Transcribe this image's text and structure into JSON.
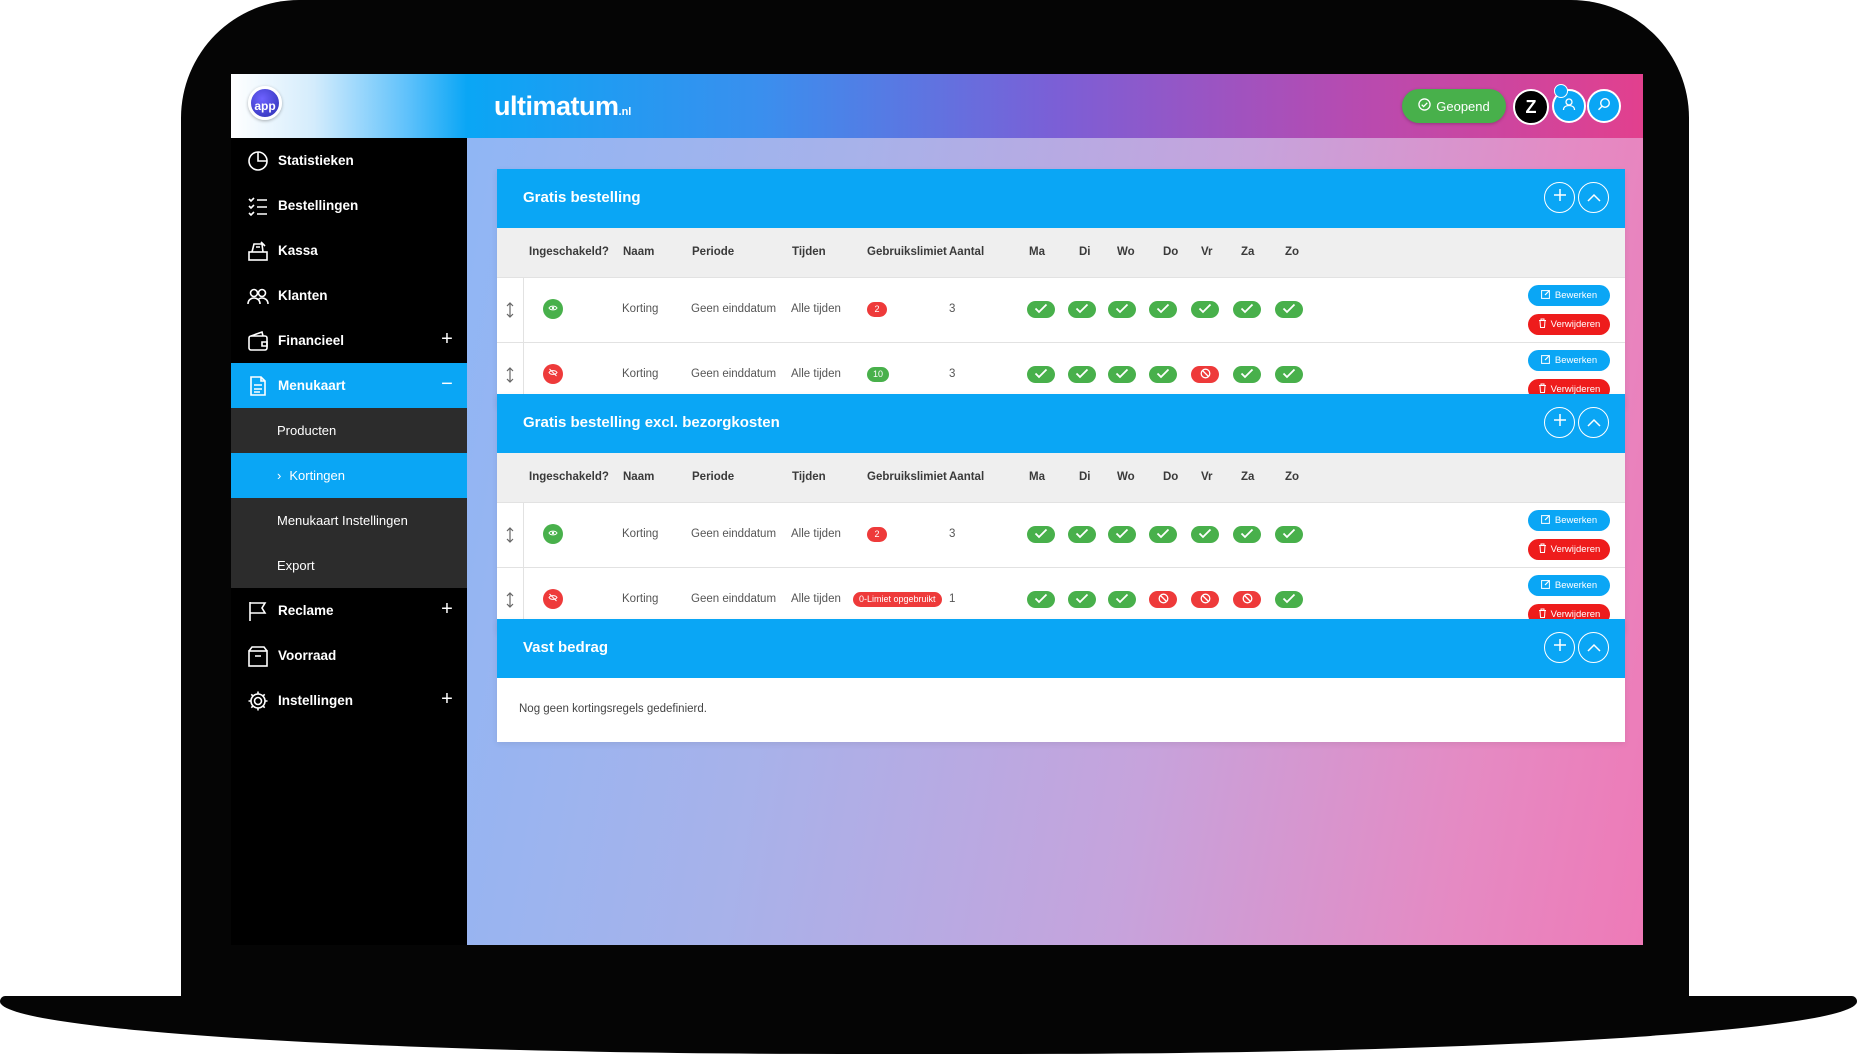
{
  "app": {
    "logo_text": "app",
    "brand": "ultimatum",
    "brand_suffix": ".nl",
    "status_button": "Geopend",
    "user_initial": "Z"
  },
  "sidebar": {
    "items": [
      {
        "label": "Statistieken",
        "icon": "pie-chart-icon"
      },
      {
        "label": "Bestellingen",
        "icon": "checklist-icon"
      },
      {
        "label": "Kassa",
        "icon": "cash-register-icon"
      },
      {
        "label": "Klanten",
        "icon": "users-icon"
      },
      {
        "label": "Financieel",
        "icon": "wallet-icon",
        "expandable": true
      },
      {
        "label": "Menukaart",
        "icon": "document-icon",
        "expanded": true,
        "active": true
      },
      {
        "label": "Reclame",
        "icon": "flag-icon",
        "expandable": true
      },
      {
        "label": "Voorraad",
        "icon": "box-icon"
      },
      {
        "label": "Instellingen",
        "icon": "gear-icon",
        "expandable": true
      }
    ],
    "sub_items": [
      {
        "label": "Producten"
      },
      {
        "label": "Kortingen",
        "active": true
      },
      {
        "label": "Menukaart Instellingen"
      },
      {
        "label": "Export"
      }
    ]
  },
  "columns": {
    "enabled": "Ingeschakeld?",
    "name": "Naam",
    "period": "Periode",
    "times": "Tijden",
    "limit": "Gebruikslimiet",
    "count": "Aantal",
    "days": [
      "Ma",
      "Di",
      "Wo",
      "Do",
      "Vr",
      "Za",
      "Zo"
    ]
  },
  "actions": {
    "edit": "Bewerken",
    "delete": "Verwijderen"
  },
  "sections": [
    {
      "title": "Gratis bestelling",
      "rows": [
        {
          "enabled": true,
          "name": "Korting",
          "period": "Geen einddatum",
          "times": "Alle tijden",
          "limit": "2",
          "limit_color": "red",
          "count": "3",
          "days": [
            true,
            true,
            true,
            true,
            true,
            true,
            true
          ]
        },
        {
          "enabled": false,
          "name": "Korting",
          "period": "Geen einddatum",
          "times": "Alle tijden",
          "limit": "10",
          "limit_color": "green",
          "count": "3",
          "days": [
            true,
            true,
            true,
            true,
            false,
            true,
            true
          ]
        }
      ]
    },
    {
      "title": "Gratis bestelling excl. bezorgkosten",
      "rows": [
        {
          "enabled": true,
          "name": "Korting",
          "period": "Geen einddatum",
          "times": "Alle tijden",
          "limit": "2",
          "limit_color": "red",
          "count": "3",
          "days": [
            true,
            true,
            true,
            true,
            true,
            true,
            true
          ]
        },
        {
          "enabled": false,
          "name": "Korting",
          "period": "Geen einddatum",
          "times": "Alle tijden",
          "limit": "0-Limiet opgebruikt",
          "limit_color": "red",
          "count": "1",
          "days": [
            true,
            true,
            true,
            false,
            false,
            false,
            true
          ]
        }
      ]
    },
    {
      "title": "Vast bedrag",
      "rows": [],
      "empty_message": "Nog geen kortingsregels gedefinierd."
    }
  ],
  "colors": {
    "accent": "#0aa6f5",
    "success": "#48b04b",
    "danger": "#ee3a3a",
    "sidebar_bg": "#000000",
    "submenu_bg": "#2c2c2c"
  }
}
